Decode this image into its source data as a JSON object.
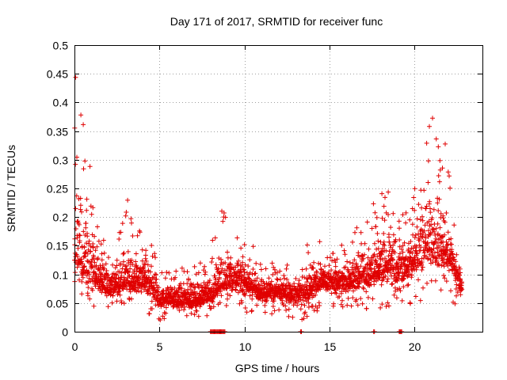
{
  "chart_data": {
    "type": "scatter",
    "title": "Day 171 of 2017, SRMTID for receiver func",
    "xlabel": "GPS time / hours",
    "ylabel": "SRMTID / TECUs",
    "xlim": [
      0,
      24
    ],
    "ylim": [
      0,
      0.5
    ],
    "grid": true,
    "x_ticks": [
      0,
      5,
      10,
      15,
      20
    ],
    "x_tick_labels": [
      "0",
      "5",
      "10",
      "15",
      "20"
    ],
    "y_ticks": [
      0,
      0.05,
      0.1,
      0.15,
      0.2,
      0.25,
      0.3,
      0.35,
      0.4,
      0.45,
      0.5
    ],
    "y_tick_labels": [
      "0",
      "0.05",
      "0.1",
      "0.15",
      "0.2",
      "0.25",
      "0.3",
      "0.35",
      "0.4",
      "0.45",
      "0.5"
    ],
    "marker": "+",
    "marker_color": "#e00000",
    "baseline_intervals_hours": [
      [
        8.0,
        8.9
      ],
      [
        13.3,
        13.4
      ],
      [
        17.6,
        17.7
      ],
      [
        19.1,
        19.3
      ]
    ],
    "series_profile": {
      "hours": [
        0,
        0.5,
        1,
        1.5,
        2,
        2.5,
        3,
        3.5,
        4,
        4.5,
        5,
        5.5,
        6,
        6.5,
        7,
        7.5,
        8,
        8.5,
        9,
        9.5,
        10,
        10.5,
        11,
        11.5,
        12,
        12.5,
        13,
        13.5,
        14,
        14.5,
        15,
        15.5,
        16,
        16.5,
        17,
        17.5,
        18,
        18.5,
        19,
        19.5,
        20,
        20.5,
        21,
        21.5,
        22,
        22.5,
        22.8
      ],
      "median": [
        0.14,
        0.12,
        0.1,
        0.09,
        0.075,
        0.08,
        0.09,
        0.085,
        0.09,
        0.08,
        0.055,
        0.06,
        0.055,
        0.055,
        0.055,
        0.06,
        0.06,
        0.08,
        0.09,
        0.09,
        0.085,
        0.075,
        0.07,
        0.07,
        0.07,
        0.065,
        0.065,
        0.07,
        0.08,
        0.085,
        0.085,
        0.085,
        0.085,
        0.09,
        0.1,
        0.1,
        0.11,
        0.12,
        0.11,
        0.11,
        0.13,
        0.14,
        0.15,
        0.15,
        0.14,
        0.1,
        0.08
      ],
      "upper": [
        0.47,
        0.38,
        0.27,
        0.2,
        0.14,
        0.15,
        0.25,
        0.17,
        0.18,
        0.16,
        0.12,
        0.11,
        0.11,
        0.12,
        0.12,
        0.12,
        0.14,
        0.23,
        0.2,
        0.17,
        0.16,
        0.15,
        0.13,
        0.12,
        0.12,
        0.12,
        0.13,
        0.15,
        0.16,
        0.16,
        0.14,
        0.15,
        0.16,
        0.18,
        0.2,
        0.22,
        0.26,
        0.26,
        0.23,
        0.21,
        0.26,
        0.3,
        0.38,
        0.36,
        0.31,
        0.15,
        0.1
      ],
      "lower": [
        0.06,
        0.05,
        0.04,
        0.04,
        0.035,
        0.04,
        0.045,
        0.04,
        0.035,
        0.03,
        0.02,
        0.025,
        0.02,
        0.02,
        0.025,
        0.025,
        0.03,
        0.04,
        0.04,
        0.04,
        0.035,
        0.03,
        0.03,
        0.03,
        0.03,
        0.025,
        0.02,
        0.02,
        0.03,
        0.04,
        0.04,
        0.04,
        0.04,
        0.04,
        0.04,
        0.04,
        0.04,
        0.04,
        0.04,
        0.04,
        0.05,
        0.05,
        0.06,
        0.06,
        0.05,
        0.04,
        0.05
      ]
    }
  }
}
